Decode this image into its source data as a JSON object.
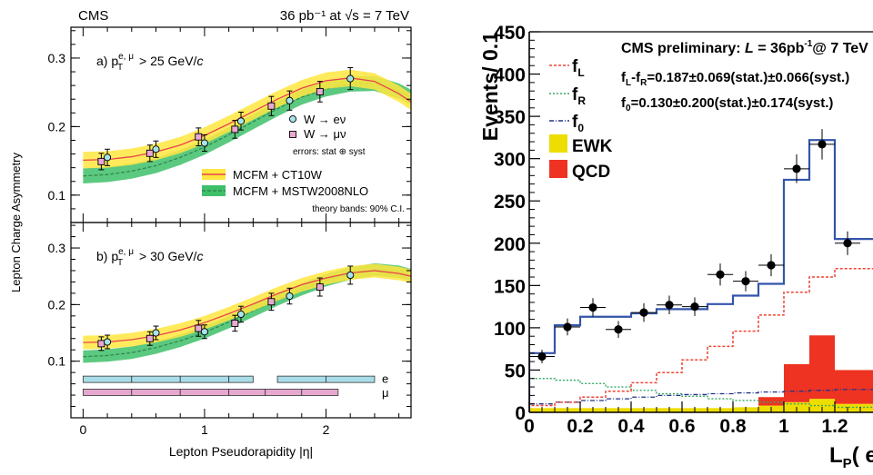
{
  "chart_data": [
    {
      "type": "scatter",
      "header_left": "CMS",
      "header_right": "36 pb⁻¹  at  √s = 7 TeV",
      "xlabel": "Lepton Pseudorapidity    |η|",
      "ylabel": "Lepton Charge Asymmetry",
      "xlim": [
        -0.1,
        2.7
      ],
      "x_ticks": [
        "0",
        "1",
        "2"
      ],
      "legend": {
        "w_e": "W → eν",
        "w_mu": "W → μν",
        "errors": "errors: stat ⊕ syst",
        "ct10": "MCFM + CT10W",
        "mstw": "MCFM + MSTW2008NLO",
        "bands": "theory bands: 90% C.I."
      },
      "colors": {
        "ct10_band": "#ffe640",
        "ct10_line": "#e8434b",
        "mstw_band": "#3fbf6a",
        "mstw_line": "#2f8a4f",
        "e_marker": "#a6e3ea",
        "mu_marker": "#e9a9d2"
      },
      "panels": [
        {
          "label": "a)  p",
          "label_sup": "e, μ",
          "label_sub": "T",
          "label_rest": " > 25 GeV/",
          "label_c": "c",
          "ylim": [
            0.06,
            0.345
          ],
          "y_ticks": [
            "0.1",
            "0.2",
            "0.3"
          ],
          "electron": {
            "x": [
              0.2,
              0.6,
              1.0,
              1.3,
              1.7,
              2.2
            ],
            "y": [
              0.155,
              0.167,
              0.176,
              0.208,
              0.238,
              0.27
            ],
            "err": [
              0.012,
              0.012,
              0.012,
              0.013,
              0.014,
              0.016
            ],
            "xerr": [
              0.1,
              0.1,
              0.1,
              0.1,
              0.1,
              0.1
            ]
          },
          "muon": {
            "x": [
              0.15,
              0.55,
              0.95,
              1.25,
              1.55,
              1.95
            ],
            "y": [
              0.149,
              0.161,
              0.185,
              0.196,
              0.23,
              0.251
            ],
            "err": [
              0.012,
              0.012,
              0.013,
              0.013,
              0.014,
              0.015
            ],
            "xerr": [
              0.15,
              0.15,
              0.15,
              0.15,
              0.15,
              0.15
            ]
          },
          "ct10": {
            "x": [
              0,
              0.2,
              0.4,
              0.6,
              0.8,
              1.0,
              1.2,
              1.4,
              1.6,
              1.8,
              2.0,
              2.2,
              2.4,
              2.6,
              2.7
            ],
            "y": [
              0.151,
              0.152,
              0.156,
              0.163,
              0.173,
              0.187,
              0.204,
              0.222,
              0.24,
              0.256,
              0.267,
              0.271,
              0.266,
              0.248,
              0.236
            ],
            "hw": 0.012
          },
          "mstw": {
            "x": [
              0,
              0.2,
              0.4,
              0.6,
              0.8,
              1.0,
              1.2,
              1.4,
              1.6,
              1.8,
              2.0,
              2.2,
              2.4,
              2.6,
              2.7
            ],
            "y": [
              0.128,
              0.13,
              0.135,
              0.143,
              0.155,
              0.17,
              0.188,
              0.207,
              0.226,
              0.243,
              0.255,
              0.262,
              0.263,
              0.252,
              0.243
            ],
            "hw": 0.011
          }
        },
        {
          "label": "b)  p",
          "label_sup": "e, μ",
          "label_sub": "T",
          "label_rest": " > 30 GeV/",
          "label_c": "c",
          "ylim": [
            0.0,
            0.345
          ],
          "y_ticks": [
            "0.1",
            "0.2",
            "0.3"
          ],
          "electron": {
            "x": [
              0.2,
              0.6,
              1.0,
              1.3,
              1.7,
              2.2
            ],
            "y": [
              0.134,
              0.15,
              0.152,
              0.183,
              0.215,
              0.252
            ],
            "err": [
              0.012,
              0.012,
              0.012,
              0.014,
              0.014,
              0.016
            ],
            "xerr": [
              0.1,
              0.1,
              0.1,
              0.1,
              0.1,
              0.1
            ]
          },
          "muon": {
            "x": [
              0.15,
              0.55,
              0.95,
              1.25,
              1.55,
              1.95
            ],
            "y": [
              0.131,
              0.14,
              0.158,
              0.167,
              0.205,
              0.231
            ],
            "err": [
              0.012,
              0.012,
              0.014,
              0.014,
              0.015,
              0.016
            ],
            "xerr": [
              0.15,
              0.15,
              0.15,
              0.15,
              0.15,
              0.15
            ]
          },
          "ct10": {
            "x": [
              0,
              0.2,
              0.4,
              0.6,
              0.8,
              1.0,
              1.2,
              1.4,
              1.6,
              1.8,
              2.0,
              2.2,
              2.4,
              2.6,
              2.7
            ],
            "y": [
              0.133,
              0.134,
              0.138,
              0.145,
              0.155,
              0.168,
              0.184,
              0.201,
              0.219,
              0.235,
              0.247,
              0.256,
              0.26,
              0.255,
              0.25
            ],
            "hw": 0.012
          },
          "mstw": {
            "x": [
              0,
              0.2,
              0.4,
              0.6,
              0.8,
              1.0,
              1.2,
              1.4,
              1.6,
              1.8,
              2.0,
              2.2,
              2.4,
              2.6,
              2.7
            ],
            "y": [
              0.108,
              0.11,
              0.115,
              0.124,
              0.136,
              0.151,
              0.169,
              0.189,
              0.209,
              0.227,
              0.243,
              0.255,
              0.262,
              0.258,
              0.252
            ],
            "hw": 0.011
          },
          "coverage": {
            "e_label": "e",
            "mu_label": "μ",
            "e_bins": [
              [
                0,
                0.4
              ],
              [
                0.4,
                0.8
              ],
              [
                0.8,
                1.2
              ],
              [
                1.2,
                1.4
              ],
              [
                1.6,
                2.0
              ],
              [
                2.0,
                2.4
              ]
            ],
            "mu_bins": [
              [
                0,
                0.4
              ],
              [
                0.4,
                0.8
              ],
              [
                0.8,
                1.2
              ],
              [
                1.2,
                1.5
              ],
              [
                1.5,
                1.8
              ],
              [
                1.8,
                2.1
              ]
            ]
          }
        }
      ]
    },
    {
      "type": "histogram",
      "ylabel": "Events/ 0.1",
      "xlabel_main": "L",
      "xlabel_sub": "P",
      "xlabel_arg": "( e",
      "xlabel_sup": "-",
      "xlabel_end": ")",
      "xlim": [
        0,
        1.35
      ],
      "ylim": [
        0,
        450
      ],
      "x_ticks": [
        0,
        0.2,
        0.4,
        0.6,
        0.8,
        1,
        1.2
      ],
      "x_tick_labels": [
        "0",
        "0.2",
        "0.4",
        "0.6",
        "0.8",
        "1",
        "1.2"
      ],
      "y_ticks": [
        0,
        50,
        100,
        150,
        200,
        250,
        300,
        350,
        400,
        450
      ],
      "y_tick_labels": [
        "0",
        "50",
        "100",
        "150",
        "200",
        "250",
        "300",
        "350",
        "400",
        "450"
      ],
      "text": {
        "line1_pre": "CMS preliminary: ",
        "line1_L": "L",
        "line1_post": " = 36pb",
        "line1_sup": "-1",
        "line1_end": "@ 7 TeV",
        "line2_pre": "f",
        "line2_sub1": "L",
        "line2_mid": "-f",
        "line2_sub2": "R",
        "line2_post": "=0.187±0.069(stat.)±0.066(syst.)",
        "line3_pre": "f",
        "line3_sub": "0",
        "line3_post": "=0.130±0.200(stat.)±0.174(syst.)"
      },
      "legend": [
        {
          "name": "f",
          "sub": "L"
        },
        {
          "name": "f",
          "sub": "R"
        },
        {
          "name": "f",
          "sub": "0"
        },
        {
          "name": "EWK",
          "sub": ""
        },
        {
          "name": "QCD",
          "sub": ""
        }
      ],
      "colors": {
        "total": "#3355aa",
        "fL": "#ee4433",
        "fR": "#33aa66",
        "f0": "#223388",
        "ewk": "#eedd00",
        "qcd": "#ee3322"
      },
      "bin_edges": [
        0,
        0.1,
        0.2,
        0.3,
        0.4,
        0.5,
        0.6,
        0.7,
        0.8,
        0.9,
        1.0,
        1.1,
        1.2,
        1.3,
        1.35
      ],
      "total": [
        70,
        103,
        113,
        113,
        117,
        122,
        122,
        128,
        138,
        152,
        275,
        322,
        205,
        205
      ],
      "fL": [
        8,
        12,
        18,
        25,
        35,
        47,
        62,
        78,
        96,
        115,
        142,
        160,
        170,
        170
      ],
      "fR": [
        40,
        38,
        34,
        30,
        26,
        22,
        19,
        16,
        14,
        12,
        10,
        8,
        6,
        6
      ],
      "f0": [
        10,
        12,
        14,
        16,
        18,
        20,
        21,
        22,
        23,
        24,
        25,
        26,
        27,
        27
      ],
      "ewk": [
        5,
        5,
        5,
        5,
        5,
        5,
        5,
        5,
        6,
        8,
        12,
        16,
        10,
        10
      ],
      "qcd": [
        0,
        0,
        0,
        0,
        0,
        0,
        0,
        0,
        0,
        10,
        45,
        75,
        40,
        40
      ],
      "data": {
        "x": [
          0.05,
          0.15,
          0.25,
          0.35,
          0.45,
          0.55,
          0.65,
          0.75,
          0.85,
          0.95,
          1.05,
          1.15,
          1.25
        ],
        "y": [
          66,
          101,
          124,
          98,
          118,
          127,
          125,
          163,
          155,
          174,
          288,
          317,
          200
        ],
        "err": [
          8,
          10,
          11,
          10,
          11,
          11,
          11,
          13,
          12,
          13,
          17,
          18,
          14
        ]
      }
    }
  ]
}
